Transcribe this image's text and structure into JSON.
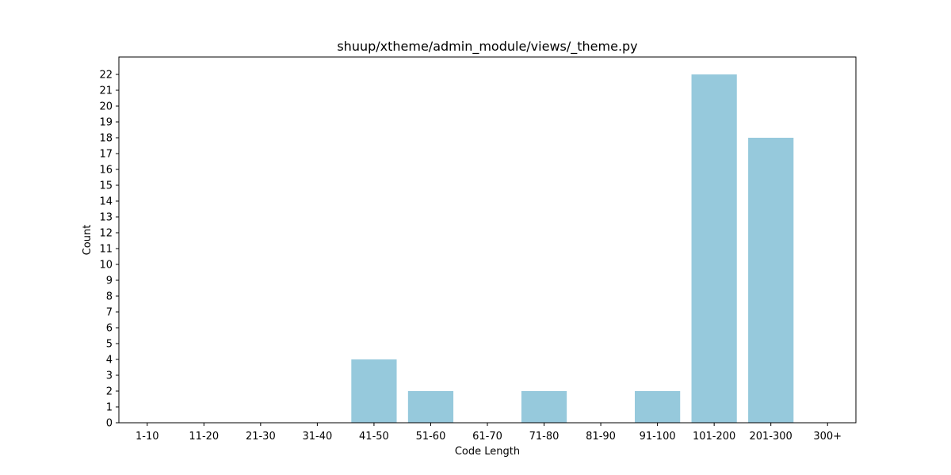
{
  "chart_data": {
    "type": "bar",
    "title": "shuup/xtheme/admin_module/views/_theme.py",
    "xlabel": "Code Length",
    "ylabel": "Count",
    "categories": [
      "1-10",
      "11-20",
      "21-30",
      "31-40",
      "41-50",
      "51-60",
      "61-70",
      "71-80",
      "81-90",
      "91-100",
      "101-200",
      "201-300",
      "300+"
    ],
    "values": [
      0,
      0,
      0,
      0,
      4,
      2,
      0,
      2,
      0,
      2,
      22,
      18,
      0
    ],
    "ylim": [
      0,
      23.1
    ],
    "yticks": [
      0,
      1,
      2,
      3,
      4,
      5,
      6,
      7,
      8,
      9,
      10,
      11,
      12,
      13,
      14,
      15,
      16,
      17,
      18,
      19,
      20,
      21,
      22
    ],
    "grid": false,
    "bar_color": "#96c9dc"
  }
}
